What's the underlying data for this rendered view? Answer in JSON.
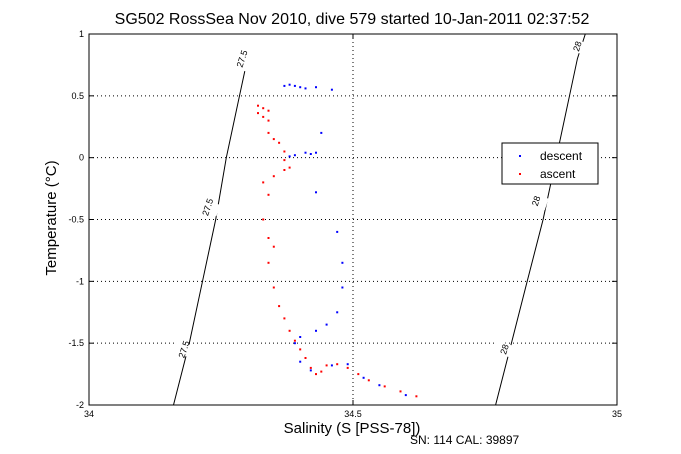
{
  "chart_data": {
    "type": "scatter",
    "title": "SG502 RossSea Nov 2010, dive 579 started 10-Jan-2011 02:37:52",
    "xlabel": "Salinity (S [PSS-78])",
    "ylabel": "Temperature (°C)",
    "xlim": [
      34,
      35
    ],
    "ylim": [
      -2,
      1
    ],
    "xticks": [
      "34",
      "34.5",
      "35"
    ],
    "yticks": [
      "-2",
      "-1.5",
      "-1",
      "-0.5",
      "0",
      "0.5",
      "1"
    ],
    "grid": true,
    "legend_position": "right",
    "footer": "SN: 114  CAL: 39897",
    "colors": {
      "descent": "#0000ff",
      "ascent": "#ff0000",
      "contour": "#000000"
    },
    "contours": [
      {
        "label": "27.5",
        "points": [
          [
            34.16,
            -2.0
          ],
          [
            34.19,
            -1.5
          ],
          [
            34.215,
            -1.0
          ],
          [
            34.24,
            -0.5
          ],
          [
            34.26,
            0.0
          ],
          [
            34.285,
            0.5
          ],
          [
            34.295,
            0.7
          ]
        ],
        "label_positions": [
          [
            34.18,
            -1.55
          ],
          [
            34.225,
            -0.4
          ],
          [
            34.29,
            0.8
          ]
        ]
      },
      {
        "label": "28",
        "points": [
          [
            34.77,
            -2.0
          ],
          [
            34.8,
            -1.5
          ],
          [
            34.83,
            -1.0
          ],
          [
            34.86,
            -0.5
          ],
          [
            34.885,
            0.0
          ],
          [
            34.91,
            0.5
          ],
          [
            34.925,
            0.8
          ],
          [
            34.94,
            1.0
          ]
        ],
        "label_positions": [
          [
            34.787,
            -1.55
          ],
          [
            34.847,
            -0.35
          ],
          [
            34.925,
            0.9
          ]
        ]
      }
    ],
    "series": [
      {
        "name": "descent",
        "points": [
          [
            34.37,
            0.58
          ],
          [
            34.38,
            0.59
          ],
          [
            34.39,
            0.58
          ],
          [
            34.4,
            0.57
          ],
          [
            34.41,
            0.56
          ],
          [
            34.43,
            0.57
          ],
          [
            34.46,
            0.55
          ],
          [
            34.44,
            0.2
          ],
          [
            34.43,
            0.04
          ],
          [
            34.42,
            0.03
          ],
          [
            34.41,
            0.04
          ],
          [
            34.39,
            0.02
          ],
          [
            34.38,
            0.01
          ],
          [
            34.43,
            -0.28
          ],
          [
            34.47,
            -0.6
          ],
          [
            34.48,
            -0.85
          ],
          [
            34.48,
            -1.05
          ],
          [
            34.47,
            -1.25
          ],
          [
            34.45,
            -1.35
          ],
          [
            34.43,
            -1.4
          ],
          [
            34.4,
            -1.45
          ],
          [
            34.39,
            -1.5
          ],
          [
            34.4,
            -1.65
          ],
          [
            34.42,
            -1.72
          ],
          [
            34.46,
            -1.68
          ],
          [
            34.49,
            -1.67
          ],
          [
            34.52,
            -1.78
          ],
          [
            34.55,
            -1.84
          ],
          [
            34.6,
            -1.92
          ]
        ]
      },
      {
        "name": "ascent",
        "points": [
          [
            34.32,
            0.42
          ],
          [
            34.33,
            0.4
          ],
          [
            34.34,
            0.38
          ],
          [
            34.32,
            0.36
          ],
          [
            34.33,
            0.33
          ],
          [
            34.34,
            0.3
          ],
          [
            34.34,
            0.2
          ],
          [
            34.35,
            0.15
          ],
          [
            34.36,
            0.12
          ],
          [
            34.37,
            0.05
          ],
          [
            34.37,
            -0.02
          ],
          [
            34.38,
            -0.08
          ],
          [
            34.37,
            -0.1
          ],
          [
            34.35,
            -0.15
          ],
          [
            34.33,
            -0.2
          ],
          [
            34.34,
            -0.3
          ],
          [
            34.33,
            -0.5
          ],
          [
            34.34,
            -0.65
          ],
          [
            34.35,
            -0.72
          ],
          [
            34.34,
            -0.85
          ],
          [
            34.35,
            -1.05
          ],
          [
            34.36,
            -1.2
          ],
          [
            34.37,
            -1.3
          ],
          [
            34.38,
            -1.4
          ],
          [
            34.39,
            -1.48
          ],
          [
            34.4,
            -1.55
          ],
          [
            34.41,
            -1.62
          ],
          [
            34.42,
            -1.7
          ],
          [
            34.43,
            -1.75
          ],
          [
            34.44,
            -1.73
          ],
          [
            34.45,
            -1.68
          ],
          [
            34.47,
            -1.67
          ],
          [
            34.49,
            -1.7
          ],
          [
            34.51,
            -1.75
          ],
          [
            34.53,
            -1.8
          ],
          [
            34.56,
            -1.85
          ],
          [
            34.59,
            -1.89
          ],
          [
            34.62,
            -1.93
          ]
        ]
      }
    ]
  }
}
